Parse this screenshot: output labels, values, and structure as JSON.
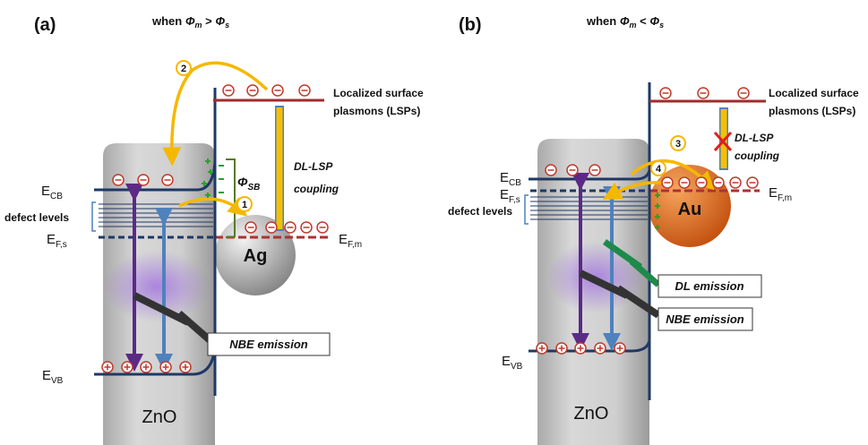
{
  "panels": [
    {
      "label": "(a)",
      "condition": [
        "when ",
        "Φ",
        "m",
        " > ",
        "Φ",
        "s"
      ],
      "lsp": [
        "Localized surface",
        "plasmons (LSPs)"
      ],
      "coupling": [
        "DL-LSP",
        "coupling"
      ],
      "barrier": {
        "main": "Φ",
        "sub": "SB"
      },
      "ecb": {
        "main": "E",
        "sub": "CB"
      },
      "efs": {
        "main": "E",
        "sub": "F,s"
      },
      "efm": {
        "main": "E",
        "sub": "F,m"
      },
      "evb": {
        "main": "E",
        "sub": "VB"
      },
      "defect_levels": "defect levels",
      "metal": "Ag",
      "nbe": "NBE emission",
      "material": "ZnO",
      "steps": [
        "1",
        "2"
      ]
    },
    {
      "label": "(b)",
      "condition": [
        "when ",
        "Φ",
        "m",
        " < ",
        "Φ",
        "s"
      ],
      "lsp": [
        "Localized surface",
        "plasmons (LSPs)"
      ],
      "coupling": [
        "DL-LSP",
        "coupling"
      ],
      "ecb": {
        "main": "E",
        "sub": "CB"
      },
      "efs": {
        "main": "E",
        "sub": "F,s"
      },
      "efm": {
        "main": "E",
        "sub": "F,m"
      },
      "evb": {
        "main": "E",
        "sub": "VB"
      },
      "defect_levels": "defect levels",
      "metal": "Au",
      "dl": "DL emission",
      "nbe": "NBE emission",
      "material": "ZnO",
      "steps": [
        "3",
        "4"
      ]
    }
  ]
}
